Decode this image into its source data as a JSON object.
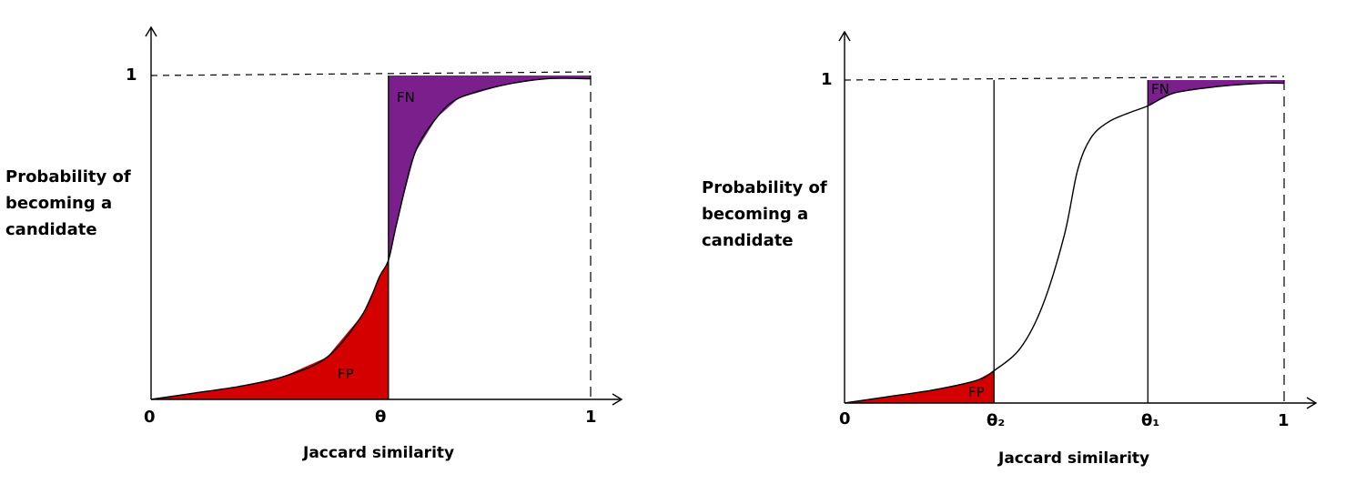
{
  "chart_data": [
    {
      "type": "area",
      "title": "",
      "xlabel": "Jaccard similarity",
      "ylabel": "Probability of\nbecoming a\ncandidate",
      "xlim": [
        0,
        1
      ],
      "ylim": [
        0,
        1
      ],
      "x_ticks": [
        "0",
        "θ",
        "1"
      ],
      "y_ticks": [
        "1"
      ],
      "threshold": 0.54,
      "curve": {
        "x": [
          0,
          0.1,
          0.2,
          0.3,
          0.4,
          0.48,
          0.52,
          0.54,
          0.56,
          0.6,
          0.65,
          0.7,
          0.8,
          0.9,
          1.0
        ],
        "y": [
          0.0,
          0.02,
          0.04,
          0.07,
          0.13,
          0.26,
          0.38,
          0.43,
          0.55,
          0.76,
          0.87,
          0.93,
          0.97,
          0.99,
          0.99
        ]
      },
      "regions": [
        {
          "label": "FP",
          "color": "#d40000",
          "x_range": [
            0,
            0.54
          ],
          "under_curve": true
        },
        {
          "label": "FN",
          "color": "#7b1f8c",
          "x_range": [
            0.54,
            1.0
          ],
          "under_curve": false
        }
      ]
    },
    {
      "type": "area",
      "title": "",
      "xlabel": "Jaccard similarity",
      "ylabel": "Probability of\nbecoming a\ncandidate",
      "xlim": [
        0,
        1
      ],
      "ylim": [
        0,
        1
      ],
      "x_ticks": [
        "0",
        "θ₂",
        "θ₁",
        "1"
      ],
      "y_ticks": [
        "1"
      ],
      "thresholds": [
        0.34,
        0.69
      ],
      "curve": {
        "x": [
          0,
          0.1,
          0.2,
          0.3,
          0.34,
          0.4,
          0.45,
          0.5,
          0.53,
          0.56,
          0.6,
          0.65,
          0.69,
          0.75,
          0.85,
          0.95,
          1.0
        ],
        "y": [
          0.0,
          0.02,
          0.04,
          0.07,
          0.1,
          0.17,
          0.3,
          0.52,
          0.72,
          0.82,
          0.87,
          0.9,
          0.92,
          0.96,
          0.98,
          0.99,
          0.99
        ]
      },
      "regions": [
        {
          "label": "FP",
          "color": "#d40000",
          "x_range": [
            0,
            0.34
          ],
          "under_curve": true
        },
        {
          "label": "FN",
          "color": "#7b1f8c",
          "x_range": [
            0.69,
            1.0
          ],
          "under_curve": false
        }
      ]
    }
  ]
}
